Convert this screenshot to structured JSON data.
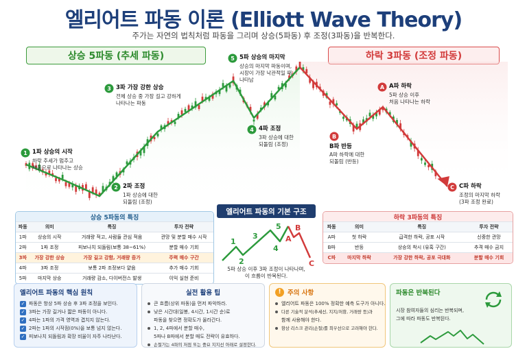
{
  "header": {
    "title": "엘리어트 파동 이론 (Elliott Wave Theory)",
    "subtitle": "주가는 자연의 법칙처럼 파동을 그리며 상승(5파동) 후 조정(3파동)을 반복한다."
  },
  "banners": {
    "up": "상승 5파동 (추세 파동)",
    "down": "하락 3파동 (조정 파동)"
  },
  "colors": {
    "up": "#2c9a3c",
    "down": "#d23b3b",
    "navy": "#1f3d6e"
  },
  "waves": {
    "w1": {
      "num": "1",
      "title": "1파 상승의 시작",
      "desc1": "하락 추세가 멈추고",
      "desc2": "처음으로 나타나는 상승"
    },
    "w2": {
      "num": "2",
      "title": "2파 조정",
      "desc1": "1파 상승에 대한",
      "desc2": "되돌림 (조정)"
    },
    "w3": {
      "num": "3",
      "title": "3파 가장 강한 상승",
      "desc1": "전체 상승 중 가장 길고 강하게",
      "desc2": "나타나는 파동"
    },
    "w4": {
      "num": "4",
      "title": "4파 조정",
      "desc1": "3파 상승에 대한",
      "desc2": "되돌림 (조정)"
    },
    "w5": {
      "num": "5",
      "title": "5파 상승의 마지막",
      "desc1": "상승의 마지막 파동이며,",
      "desc2": "시장이 가장 낙관적일 때",
      "desc3": "나타남"
    },
    "wA": {
      "num": "A",
      "title": "A파 하락",
      "desc1": "5파 상승 이후",
      "desc2": "처음 나타나는 하락"
    },
    "wB": {
      "num": "B",
      "title": "B파 반등",
      "desc1": "A파 하락에 대한",
      "desc2": "되돌림 (반등)"
    },
    "wC": {
      "num": "C",
      "title": "C파 하락",
      "desc1": "조정의 마지막 하락",
      "desc2": "(3파 조정 완료)"
    }
  },
  "basic_structure": {
    "title": "엘리어트 파동의 기본 구조",
    "labels": [
      "1",
      "2",
      "3",
      "4",
      "5",
      "A",
      "B",
      "C"
    ],
    "caption1": "5파 상승 이후 3파 조정이 나타나며,",
    "caption2": "이 흐름이 반복된다."
  },
  "up_table": {
    "title": "상승 5파동의 특징",
    "headers": [
      "파동",
      "의미",
      "특징",
      "투자 전략"
    ],
    "rows": [
      [
        "1파",
        "상승의 시작",
        "거래량 적고, 사람들 관심 적음",
        "관망 및 분할 매수 시작"
      ],
      [
        "2파",
        "1파 조정",
        "피보나치 되돌림(보통 38~61%)",
        "분할 매수 기회"
      ],
      [
        "3파",
        "가장 강한 상승",
        "가장 길고 강함, 거래량 증가",
        "주력 매수 구간"
      ],
      [
        "4파",
        "3파 조정",
        "보통 2파 조정보다 얕음",
        "추가 매수 기회"
      ],
      [
        "5파",
        "마지막 상승",
        "거래량 감소, 다이버전스 발생",
        "이익 실현 준비"
      ]
    ]
  },
  "down_table": {
    "title": "하락 3파동의 특징",
    "headers": [
      "파동",
      "의미",
      "특징",
      "투자 전략"
    ],
    "rows": [
      [
        "A파",
        "첫 하락",
        "급격한 하락, 공포 시작",
        "신중한 관망"
      ],
      [
        "B파",
        "반등",
        "상승의 착시 (유혹 구간)",
        "추격 매수 금지"
      ],
      [
        "C파",
        "마지막 하락",
        "가장 강한 하락, 공포 극대화",
        "분할 매수 기회"
      ]
    ]
  },
  "cards": {
    "principles": {
      "title": "엘리어트 파동의 핵심 원칙",
      "items": [
        "파동은 항상 5파 상승 후 3파 조정을 보인다.",
        "3파는 가장 길거나 짧은 파동이 아니다.",
        "4파는 1파의 가격 영역과 겹치지 않는다.",
        "2파는 1파의 시작점(0%)을 보통 넘지 않는다.",
        "피보나치 되돌림과 확장 비율이 자주 나타난다."
      ]
    },
    "tips": {
      "title": "실전 활용 팁",
      "items": [
        "큰 흐름(상위 파동)을 먼저 파악하라.",
        "낮은 시간대(일봉, 4시간, 1시간 순)로",
        "파동을 찾으면 정확도가 올라간다.",
        "1, 2, 4파에서 분할 매수,",
        "5파나 B파에서 분할 매도 전략이 유효하다.",
        "손절가는 4파의 저점 또는 중요 지지선 아래로 설정한다."
      ]
    },
    "caution": {
      "title": "주의 사항",
      "items": [
        "엘리어트 파동은 100% 정확한 예측 도구가 아니다.",
        "다른 기술적 분석(추세선, 지지/저항, 거래량 등)과",
        "함께 사용해야 한다.",
        "항상 리스크 관리(손절)를 최우선으로 고려해야 한다."
      ]
    },
    "repeat": {
      "title": "파동은 반복된다",
      "desc1": "시장 참여자들의 심리는 반복되며,",
      "desc2": "그에 따라 파동도 반복된다."
    }
  }
}
